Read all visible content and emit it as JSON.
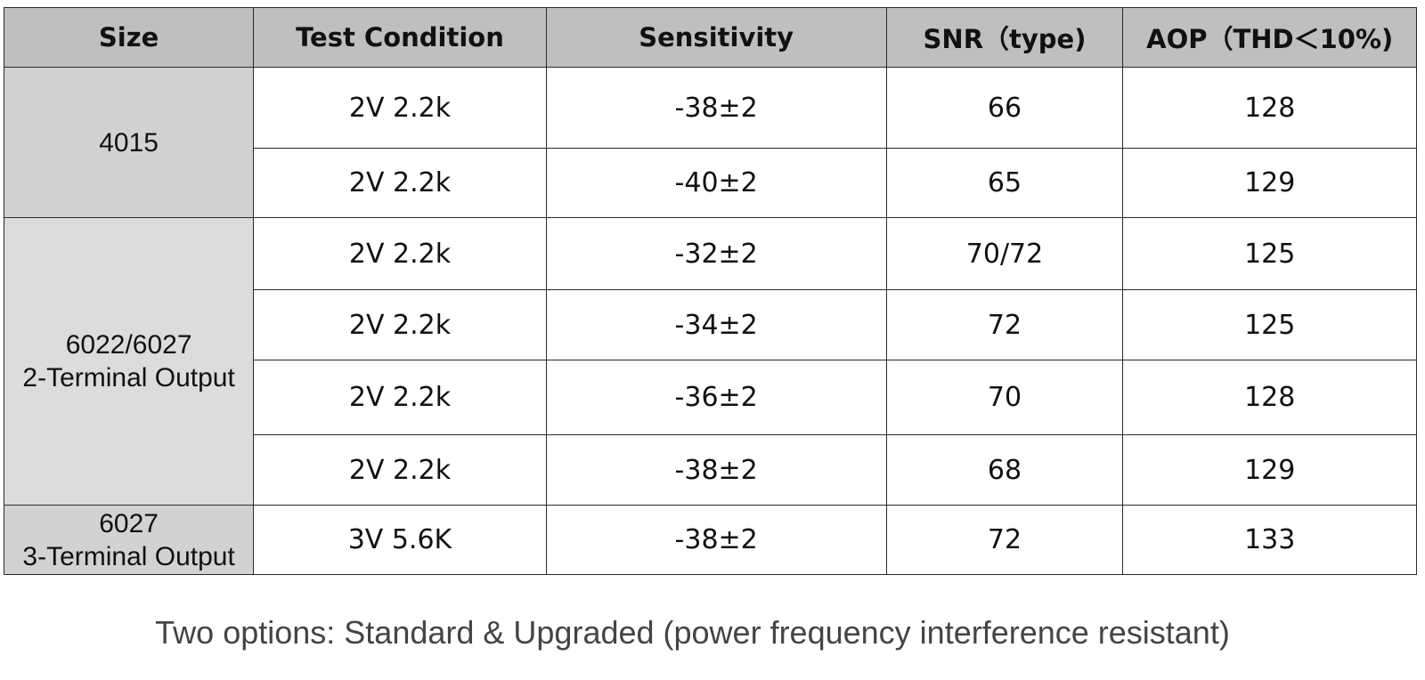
{
  "table": {
    "headers": [
      "Size",
      "Test Condition",
      "Sensitivity",
      "SNR（type)",
      "AOP（THD＜10%)"
    ],
    "groups": [
      {
        "size_lines": [
          "4015"
        ]
      },
      {
        "size_lines": [
          "6022/6027",
          "2-Terminal Output"
        ]
      },
      {
        "size_lines": [
          "6027",
          "3-Terminal Output"
        ]
      }
    ],
    "rows": [
      {
        "test_condition": "2V 2.2k",
        "sensitivity": "-38±2",
        "snr": "66",
        "aop": "128"
      },
      {
        "test_condition": "2V 2.2k",
        "sensitivity": "-40±2",
        "snr": "65",
        "aop": "129"
      },
      {
        "test_condition": "2V 2.2k",
        "sensitivity": "-32±2",
        "snr": "70/72",
        "aop": "125"
      },
      {
        "test_condition": "2V 2.2k",
        "sensitivity": "-34±2",
        "snr": "72",
        "aop": "125"
      },
      {
        "test_condition": "2V 2.2k",
        "sensitivity": "-36±2",
        "snr": "70",
        "aop": "128"
      },
      {
        "test_condition": "2V 2.2k",
        "sensitivity": "-38±2",
        "snr": "68",
        "aop": "129"
      },
      {
        "test_condition": "3V 5.6K",
        "sensitivity": "-38±2",
        "snr": "72",
        "aop": "133"
      }
    ]
  },
  "footnote": "Two options: Standard & Upgraded (power frequency interference resistant)",
  "colors": {
    "header_bg": "#bfbfbf",
    "size_group_bg": "#d3d2d3",
    "size_group_alt_bg": "#dcdcdc",
    "border": "#2a2a2a",
    "footnote_text": "#444444"
  }
}
